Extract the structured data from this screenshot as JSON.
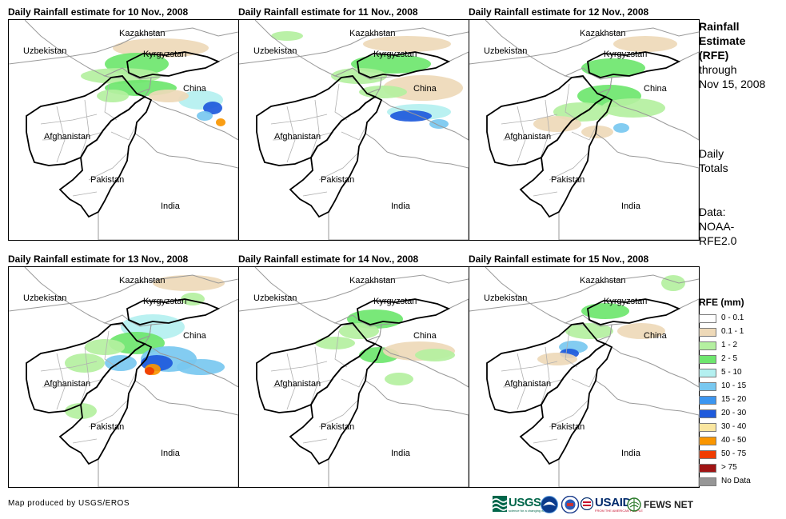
{
  "panels": [
    {
      "title": "Daily Rainfall estimate for 10 Nov., 2008"
    },
    {
      "title": "Daily Rainfall estimate for 11 Nov., 2008"
    },
    {
      "title": "Daily Rainfall estimate for 12 Nov., 2008"
    },
    {
      "title": "Daily Rainfall estimate for 13 Nov., 2008"
    },
    {
      "title": "Daily Rainfall estimate for 14 Nov., 2008"
    },
    {
      "title": "Daily Rainfall estimate for 15 Nov., 2008"
    }
  ],
  "map_labels": {
    "kazakhstan": "Kazakhstan",
    "uzbekistan": "Uzbekistan",
    "kyrgyzstan": "Kyrgyzstan",
    "china": "China",
    "afghanistan": "Afghanistan",
    "pakistan": "Pakistan",
    "india": "India"
  },
  "sidebar": {
    "title_line1": "Rainfall",
    "title_line2": "Estimate",
    "title_line3": "(RFE)",
    "title_line4": "through",
    "title_line5": "Nov 15, 2008",
    "daily_line1": "Daily",
    "daily_line2": "Totals",
    "data_line1": "Data:",
    "data_line2": "NOAA-",
    "data_line3": "RFE2.0"
  },
  "legend": {
    "title": "RFE (mm)",
    "items": [
      {
        "label": "0 - 0.1",
        "color": "#ffffff"
      },
      {
        "label": "0.1 - 1",
        "color": "#eed9b8"
      },
      {
        "label": "1 - 2",
        "color": "#b4f0a0"
      },
      {
        "label": "2 - 5",
        "color": "#6ee66e"
      },
      {
        "label": "5 - 10",
        "color": "#b4f0f0"
      },
      {
        "label": "10 - 15",
        "color": "#78c8f0"
      },
      {
        "label": "15 - 20",
        "color": "#3c96f0"
      },
      {
        "label": "20 - 30",
        "color": "#1e5adc"
      },
      {
        "label": "30 - 40",
        "color": "#fae6a0"
      },
      {
        "label": "40 - 50",
        "color": "#fa9600"
      },
      {
        "label": "50 - 75",
        "color": "#f03c00"
      },
      {
        "label": "> 75",
        "color": "#a01414"
      },
      {
        "label": "No Data",
        "color": "#969696"
      }
    ]
  },
  "footer": {
    "credit": "Map produced by USGS/EROS",
    "logo_usgs": "USGS",
    "logo_usgs_tagline": "science for a changing world",
    "logo_usaid": "USAID",
    "logo_usaid_tagline": "FROM THE AMERICAN PEOPLE",
    "logo_fewsnet": "FEWS NET"
  }
}
